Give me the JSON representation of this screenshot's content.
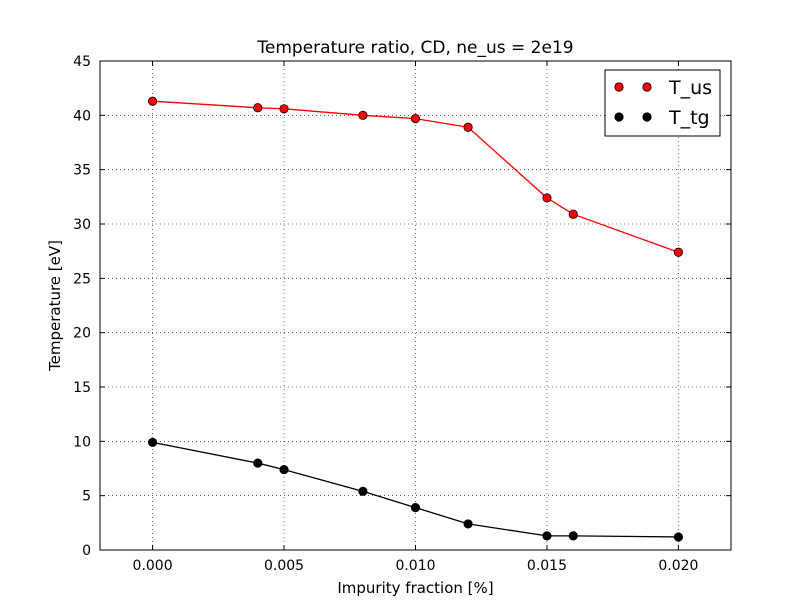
{
  "chart_data": {
    "type": "line",
    "title": "Temperature ratio, CD, ne_us = 2e19",
    "xlabel": "Impurity fraction [%]",
    "ylabel": "Temperature [eV]",
    "xlim": [
      -0.002,
      0.022
    ],
    "ylim": [
      0,
      45
    ],
    "x_ticks": [
      0.0,
      0.005,
      0.01,
      0.015,
      0.02
    ],
    "x_tick_labels": [
      "0.000",
      "0.005",
      "0.010",
      "0.015",
      "0.020"
    ],
    "y_ticks": [
      0,
      5,
      10,
      15,
      20,
      25,
      30,
      35,
      40,
      45
    ],
    "y_tick_labels": [
      "0",
      "5",
      "10",
      "15",
      "20",
      "25",
      "30",
      "35",
      "40",
      "45"
    ],
    "grid": true,
    "legend_position": "top-right",
    "x": [
      0.0,
      0.004,
      0.005,
      0.008,
      0.01,
      0.012,
      0.015,
      0.016,
      0.02
    ],
    "series": [
      {
        "name": "T_us",
        "color": "#ff0000",
        "marker_color": "#ff0000",
        "values": [
          41.3,
          40.7,
          40.6,
          40.0,
          39.7,
          38.9,
          32.4,
          30.9,
          27.4
        ]
      },
      {
        "name": "T_tg",
        "color": "#000000",
        "marker_color": "#000000",
        "values": [
          9.9,
          8.0,
          7.4,
          5.4,
          3.9,
          2.4,
          1.3,
          1.3,
          1.2
        ]
      }
    ]
  }
}
